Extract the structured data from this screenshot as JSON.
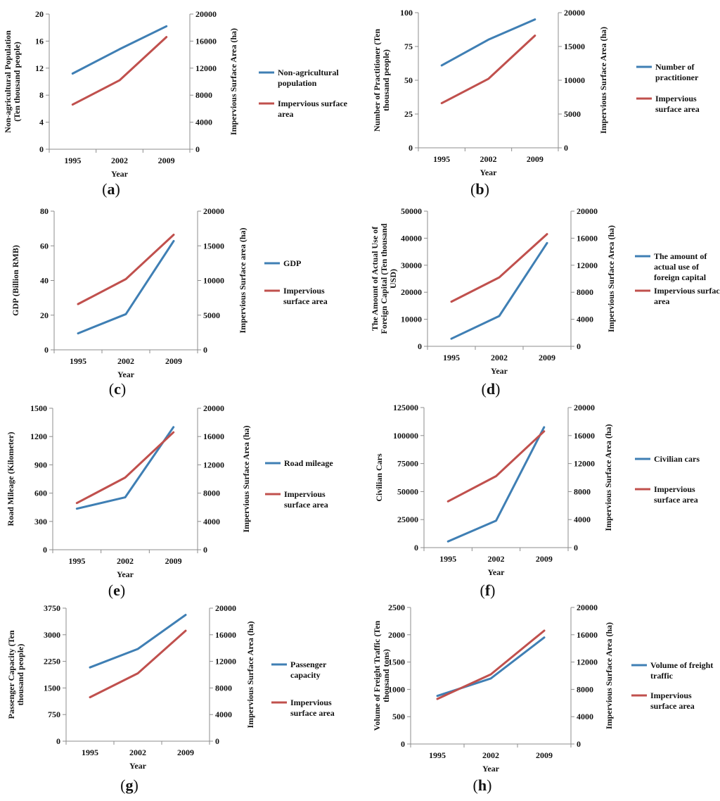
{
  "colors": {
    "blue": "#3f7fb4",
    "red": "#c0504d",
    "axis": "#8c8c8c"
  },
  "chart_data": [
    {
      "type": "line",
      "panel_label": "a",
      "categories": [
        "1995",
        "2002",
        "2009"
      ],
      "xlabel": "Year",
      "ylabel_left": "Non-agricultural Population (Ten thousand people)",
      "ylabel_right": "Impervious Surface Area (ha)",
      "left_ylim": [
        0,
        20
      ],
      "left_ticks": [
        "0",
        "4",
        "8",
        "12",
        "16",
        "20"
      ],
      "right_ylim": [
        0,
        20000
      ],
      "right_ticks": [
        "0",
        "4000",
        "8000",
        "12000",
        "16000",
        "20000"
      ],
      "series": [
        {
          "name": "Non-agricultural population",
          "axis": "left",
          "color": "#3f7fb4",
          "values": [
            11.2,
            14.8,
            18.2
          ]
        },
        {
          "name": "Impervious surface area",
          "axis": "right",
          "color": "#c0504d",
          "values": [
            6600,
            10200,
            16600
          ]
        }
      ]
    },
    {
      "type": "line",
      "panel_label": "b",
      "categories": [
        "1995",
        "2002",
        "2009"
      ],
      "xlabel": "Year",
      "ylabel_left": "Number of Practitioner (Ten thousand people)",
      "ylabel_right": "Impervious Surface Area (ha)",
      "left_ylim": [
        0,
        100
      ],
      "left_ticks": [
        "0",
        "25",
        "50",
        "75",
        "100"
      ],
      "right_ylim": [
        0,
        20000
      ],
      "right_ticks": [
        "0",
        "5000",
        "10000",
        "15000",
        "20000"
      ],
      "series": [
        {
          "name": "Number of practitioner",
          "axis": "left",
          "color": "#3f7fb4",
          "values": [
            61,
            80,
            95
          ]
        },
        {
          "name": "Impervious surface area",
          "axis": "right",
          "color": "#c0504d",
          "values": [
            6600,
            10200,
            16600
          ]
        }
      ]
    },
    {
      "type": "line",
      "panel_label": "c",
      "categories": [
        "1995",
        "2002",
        "2009"
      ],
      "xlabel": "Year",
      "ylabel_left": "GDP (Billion RMB)",
      "ylabel_right": "Impervious Surface area (ha)",
      "left_ylim": [
        0,
        80
      ],
      "left_ticks": [
        "0",
        "20",
        "40",
        "60",
        "80"
      ],
      "right_ylim": [
        0,
        20000
      ],
      "right_ticks": [
        "0",
        "5000",
        "10000",
        "15000",
        "20000"
      ],
      "series": [
        {
          "name": "GDP",
          "axis": "left",
          "color": "#3f7fb4",
          "values": [
            9.5,
            20.6,
            62.8
          ]
        },
        {
          "name": "Impervious surface area",
          "axis": "right",
          "color": "#c0504d",
          "values": [
            6600,
            10200,
            16600
          ]
        }
      ]
    },
    {
      "type": "line",
      "panel_label": "d",
      "categories": [
        "1995",
        "2002",
        "2009"
      ],
      "xlabel": "Year",
      "ylabel_left": "The Amount of Actual Use of Foreign Capital (Ten thousand USD)",
      "ylabel_right": "Impervious Surface Area (ha)",
      "left_ylim": [
        0,
        50000
      ],
      "left_ticks": [
        "0",
        "10000",
        "20000",
        "30000",
        "40000",
        "50000"
      ],
      "right_ylim": [
        0,
        20000
      ],
      "right_ticks": [
        "0",
        "4000",
        "8000",
        "12000",
        "16000",
        "20000"
      ],
      "series": [
        {
          "name": "The amount of actual use of foreign capital",
          "axis": "left",
          "color": "#3f7fb4",
          "values": [
            2800,
            11200,
            38200
          ]
        },
        {
          "name": "Impervious surface area",
          "axis": "right",
          "color": "#c0504d",
          "values": [
            6600,
            10200,
            16600
          ]
        }
      ]
    },
    {
      "type": "line",
      "panel_label": "e",
      "categories": [
        "1995",
        "2002",
        "2009"
      ],
      "xlabel": "Year",
      "ylabel_left": "Road Mileage (Kilometer)",
      "ylabel_right": "Impervious Surface Area (ha)",
      "left_ylim": [
        0,
        1500
      ],
      "left_ticks": [
        "0",
        "300",
        "600",
        "900",
        "1200",
        "1500"
      ],
      "right_ylim": [
        0,
        20000
      ],
      "right_ticks": [
        "0",
        "4000",
        "8000",
        "12000",
        "16000",
        "20000"
      ],
      "series": [
        {
          "name": "Road mileage",
          "axis": "left",
          "color": "#3f7fb4",
          "values": [
            435,
            555,
            1300
          ]
        },
        {
          "name": "Impervious surface area",
          "axis": "right",
          "color": "#c0504d",
          "values": [
            6600,
            10200,
            16600
          ]
        }
      ]
    },
    {
      "type": "line",
      "panel_label": "f",
      "categories": [
        "1995",
        "2002",
        "2009"
      ],
      "xlabel": "Year",
      "ylabel_left": "Civilian Cars",
      "ylabel_right": "Impervious Surface Area (ha)",
      "left_ylim": [
        0,
        125000
      ],
      "left_ticks": [
        "0",
        "25000",
        "50000",
        "75000",
        "100000",
        "125000"
      ],
      "right_ylim": [
        0,
        20000
      ],
      "right_ticks": [
        "0",
        "4000",
        "8000",
        "12000",
        "16000",
        "20000"
      ],
      "series": [
        {
          "name": "Civilian cars",
          "axis": "left",
          "color": "#3f7fb4",
          "values": [
            5500,
            24000,
            107500
          ]
        },
        {
          "name": "Impervious surface area",
          "axis": "right",
          "color": "#c0504d",
          "values": [
            6600,
            10200,
            16600
          ]
        }
      ]
    },
    {
      "type": "line",
      "panel_label": "g",
      "categories": [
        "1995",
        "2002",
        "2009"
      ],
      "xlabel": "Year",
      "ylabel_left": "Passenger Capacity (Ten thousand people)",
      "ylabel_right": "Impervious Surface Area (ha)",
      "left_ylim": [
        0,
        3750
      ],
      "left_ticks": [
        "0",
        "750",
        "1500",
        "2250",
        "3000",
        "3750"
      ],
      "right_ylim": [
        0,
        20000
      ],
      "right_ticks": [
        "0",
        "4000",
        "8000",
        "12000",
        "16000",
        "20000"
      ],
      "series": [
        {
          "name": "Passenger capacity",
          "axis": "left",
          "color": "#3f7fb4",
          "values": [
            2080,
            2600,
            3560
          ]
        },
        {
          "name": "Impervious surface area",
          "axis": "right",
          "color": "#c0504d",
          "values": [
            6600,
            10200,
            16600
          ]
        }
      ]
    },
    {
      "type": "line",
      "panel_label": "h",
      "categories": [
        "1995",
        "2002",
        "2009"
      ],
      "xlabel": "Year",
      "ylabel_left": "Volume of Freight Traffic (Ten thousand tons)",
      "ylabel_right": "Impervious Surface Area (ha)",
      "left_ylim": [
        0,
        2500
      ],
      "left_ticks": [
        "0",
        "500",
        "1000",
        "1500",
        "2000",
        "2500"
      ],
      "right_ylim": [
        0,
        20000
      ],
      "right_ticks": [
        "0",
        "4000",
        "8000",
        "12000",
        "16000",
        "20000"
      ],
      "series": [
        {
          "name": "Volume of freight traffic",
          "axis": "left",
          "color": "#3f7fb4",
          "values": [
            880,
            1200,
            1950
          ]
        },
        {
          "name": "Impervious surface area",
          "axis": "right",
          "color": "#c0504d",
          "values": [
            6600,
            10200,
            16600
          ]
        }
      ]
    }
  ]
}
